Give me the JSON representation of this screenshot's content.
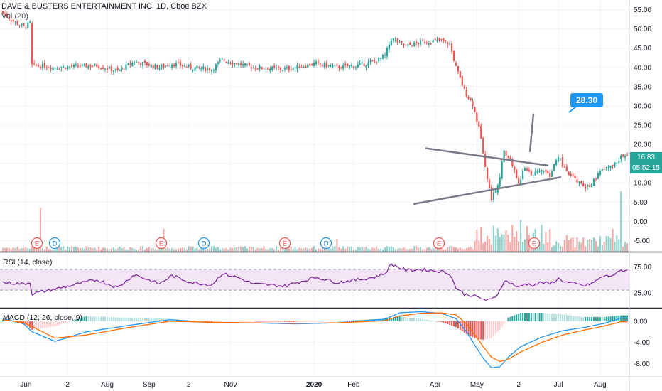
{
  "header": {
    "title": "DAVE & BUSTERS ENTERTAINMENT INC, 1D, Cboe BZX",
    "volume_label": "Vol (20)"
  },
  "rsi": {
    "label": "RSI (14, close)",
    "upper": 70,
    "lower": 30
  },
  "macd": {
    "label": "MACD (12, 26, close, 9)"
  },
  "price_tags": {
    "last": "16.83",
    "countdown": "05:52:15"
  },
  "callout": {
    "text": "28.30"
  },
  "colors": {
    "up": "#26a69a",
    "down": "#ef5350",
    "rsi_line": "#7b1fa2",
    "rsi_band": "#f3e5f5",
    "macd_line": "#2196f3",
    "signal_line": "#ff6d00",
    "drawing": "#787b86",
    "callout": "#2196f3"
  },
  "chart_data": [
    {
      "type": "candlestick",
      "title": "DAVE & BUSTERS ENTERTAINMENT INC, 1D, Cboe BZX",
      "x_ticks": [
        "Jun",
        "2",
        "Aug",
        "Sep",
        "2",
        "Nov",
        "2020",
        "Feb",
        "Apr",
        "May",
        "2",
        "Jul",
        "Aug"
      ],
      "y_ticks": [
        55.0,
        50.0,
        45.0,
        40.0,
        35.0,
        30.0,
        25.0,
        20.0,
        15.0,
        10.0,
        5.0,
        0.0,
        -5.0
      ],
      "ylim": [
        -7.5,
        57.5
      ],
      "last_price": 16.83,
      "events": [
        {
          "label": "E",
          "position": "early Jun"
        },
        {
          "label": "D",
          "position": "mid Jun"
        },
        {
          "label": "E",
          "position": "early Sep"
        },
        {
          "label": "D",
          "position": "early Oct"
        },
        {
          "label": "E",
          "position": "mid Dec"
        },
        {
          "label": "D",
          "position": "early Jan"
        },
        {
          "label": "E",
          "position": "early Apr"
        },
        {
          "label": "E",
          "position": "mid Jun"
        }
      ],
      "annotations": [
        {
          "type": "triangle",
          "upper": [
            19.0,
            14.5
          ],
          "lower": [
            4.5,
            11.5
          ]
        },
        {
          "type": "projection",
          "from": 18.0,
          "to": 28.0
        },
        {
          "type": "callout",
          "text": "28.30"
        }
      ],
      "key_points": [
        {
          "x": 0,
          "close": 54.0
        },
        {
          "x": 5,
          "close": 52.0
        },
        {
          "x": 10,
          "close": 50.5
        },
        {
          "x": 13,
          "close": 51.5
        },
        {
          "x": 14,
          "close": 40.5
        },
        {
          "x": 25,
          "close": 40.0
        },
        {
          "x": 45,
          "close": 40.5
        },
        {
          "x": 55,
          "close": 39.0
        },
        {
          "x": 63,
          "close": 41.5
        },
        {
          "x": 75,
          "close": 40.0
        },
        {
          "x": 81,
          "close": 41.0
        },
        {
          "x": 90,
          "close": 40.0
        },
        {
          "x": 100,
          "close": 39.5
        },
        {
          "x": 105,
          "close": 42.0
        },
        {
          "x": 112,
          "close": 41.0
        },
        {
          "x": 120,
          "close": 40.0
        },
        {
          "x": 135,
          "close": 39.5
        },
        {
          "x": 150,
          "close": 41.0
        },
        {
          "x": 160,
          "close": 40.0
        },
        {
          "x": 170,
          "close": 40.5
        },
        {
          "x": 178,
          "close": 41.5
        },
        {
          "x": 183,
          "close": 43.0
        },
        {
          "x": 186,
          "close": 47.5
        },
        {
          "x": 193,
          "close": 45.5
        },
        {
          "x": 200,
          "close": 46.5
        },
        {
          "x": 210,
          "close": 47.0
        },
        {
          "x": 214,
          "close": 46.0
        },
        {
          "x": 217,
          "close": 40.0
        },
        {
          "x": 221,
          "close": 34.0
        },
        {
          "x": 225,
          "close": 30.5
        },
        {
          "x": 229,
          "close": 22.0
        },
        {
          "x": 232,
          "close": 11.0
        },
        {
          "x": 234,
          "close": 6.0
        },
        {
          "x": 236,
          "close": 8.0
        },
        {
          "x": 238,
          "close": 12.0
        },
        {
          "x": 240,
          "close": 18.0
        },
        {
          "x": 243,
          "close": 16.0
        },
        {
          "x": 247,
          "close": 10.0
        },
        {
          "x": 250,
          "close": 14.0
        },
        {
          "x": 254,
          "close": 12.0
        },
        {
          "x": 258,
          "close": 13.5
        },
        {
          "x": 262,
          "close": 12.0
        },
        {
          "x": 266,
          "close": 17.0
        },
        {
          "x": 270,
          "close": 12.5
        },
        {
          "x": 274,
          "close": 11.0
        },
        {
          "x": 279,
          "close": 8.5
        },
        {
          "x": 283,
          "close": 10.5
        },
        {
          "x": 287,
          "close": 13.5
        },
        {
          "x": 291,
          "close": 14.0
        },
        {
          "x": 294,
          "close": 15.5
        },
        {
          "x": 296,
          "close": 16.83
        }
      ]
    },
    {
      "type": "line",
      "title": "RSI (14, close)",
      "y_ticks": [
        75.0,
        25.0
      ],
      "ylim": [
        0,
        100
      ],
      "bands": [
        30,
        70
      ],
      "key_points": [
        {
          "x": 0,
          "y": 45
        },
        {
          "x": 10,
          "y": 42
        },
        {
          "x": 13,
          "y": 45
        },
        {
          "x": 14,
          "y": 23
        },
        {
          "x": 25,
          "y": 32
        },
        {
          "x": 45,
          "y": 50
        },
        {
          "x": 55,
          "y": 35
        },
        {
          "x": 63,
          "y": 60
        },
        {
          "x": 75,
          "y": 42
        },
        {
          "x": 81,
          "y": 58
        },
        {
          "x": 90,
          "y": 45
        },
        {
          "x": 100,
          "y": 40
        },
        {
          "x": 105,
          "y": 62
        },
        {
          "x": 112,
          "y": 55
        },
        {
          "x": 120,
          "y": 42
        },
        {
          "x": 135,
          "y": 38
        },
        {
          "x": 150,
          "y": 55
        },
        {
          "x": 160,
          "y": 45
        },
        {
          "x": 170,
          "y": 50
        },
        {
          "x": 178,
          "y": 55
        },
        {
          "x": 183,
          "y": 62
        },
        {
          "x": 186,
          "y": 80
        },
        {
          "x": 193,
          "y": 68
        },
        {
          "x": 200,
          "y": 70
        },
        {
          "x": 210,
          "y": 66
        },
        {
          "x": 214,
          "y": 62
        },
        {
          "x": 217,
          "y": 35
        },
        {
          "x": 221,
          "y": 22
        },
        {
          "x": 225,
          "y": 20
        },
        {
          "x": 229,
          "y": 14
        },
        {
          "x": 232,
          "y": 10
        },
        {
          "x": 234,
          "y": 12
        },
        {
          "x": 236,
          "y": 18
        },
        {
          "x": 238,
          "y": 30
        },
        {
          "x": 240,
          "y": 48
        },
        {
          "x": 243,
          "y": 44
        },
        {
          "x": 247,
          "y": 35
        },
        {
          "x": 250,
          "y": 42
        },
        {
          "x": 254,
          "y": 40
        },
        {
          "x": 258,
          "y": 45
        },
        {
          "x": 262,
          "y": 42
        },
        {
          "x": 266,
          "y": 52
        },
        {
          "x": 270,
          "y": 45
        },
        {
          "x": 274,
          "y": 42
        },
        {
          "x": 279,
          "y": 38
        },
        {
          "x": 283,
          "y": 45
        },
        {
          "x": 287,
          "y": 56
        },
        {
          "x": 291,
          "y": 58
        },
        {
          "x": 294,
          "y": 62
        },
        {
          "x": 296,
          "y": 68
        }
      ]
    },
    {
      "type": "line",
      "title": "MACD (12, 26, close, 9)",
      "y_ticks": [
        0.0,
        -4.0,
        -8.0
      ],
      "ylim": [
        -10.5,
        2.0
      ],
      "series": [
        {
          "name": "MACD",
          "key_points": [
            {
              "x": 0,
              "y": 0.5
            },
            {
              "x": 10,
              "y": -0.5
            },
            {
              "x": 14,
              "y": -2.0
            },
            {
              "x": 25,
              "y": -3.8
            },
            {
              "x": 40,
              "y": -2.0
            },
            {
              "x": 60,
              "y": -0.8
            },
            {
              "x": 80,
              "y": 0.3
            },
            {
              "x": 100,
              "y": -0.3
            },
            {
              "x": 120,
              "y": -0.3
            },
            {
              "x": 140,
              "y": -0.5
            },
            {
              "x": 160,
              "y": -0.3
            },
            {
              "x": 183,
              "y": 0.4
            },
            {
              "x": 190,
              "y": 1.6
            },
            {
              "x": 200,
              "y": 1.8
            },
            {
              "x": 210,
              "y": 1.5
            },
            {
              "x": 217,
              "y": 0.5
            },
            {
              "x": 222,
              "y": -2.0
            },
            {
              "x": 226,
              "y": -4.5
            },
            {
              "x": 230,
              "y": -7.0
            },
            {
              "x": 234,
              "y": -8.8
            },
            {
              "x": 238,
              "y": -8.6
            },
            {
              "x": 242,
              "y": -6.8
            },
            {
              "x": 248,
              "y": -4.8
            },
            {
              "x": 258,
              "y": -3.0
            },
            {
              "x": 268,
              "y": -1.8
            },
            {
              "x": 278,
              "y": -1.2
            },
            {
              "x": 288,
              "y": -0.4
            },
            {
              "x": 296,
              "y": 0.6
            }
          ]
        },
        {
          "name": "Signal",
          "key_points": [
            {
              "x": 0,
              "y": 0.3
            },
            {
              "x": 10,
              "y": -0.3
            },
            {
              "x": 14,
              "y": -1.0
            },
            {
              "x": 25,
              "y": -3.2
            },
            {
              "x": 40,
              "y": -2.6
            },
            {
              "x": 60,
              "y": -1.2
            },
            {
              "x": 80,
              "y": 0.0
            },
            {
              "x": 100,
              "y": -0.2
            },
            {
              "x": 120,
              "y": -0.3
            },
            {
              "x": 140,
              "y": -0.4
            },
            {
              "x": 160,
              "y": -0.3
            },
            {
              "x": 183,
              "y": 0.1
            },
            {
              "x": 190,
              "y": 1.0
            },
            {
              "x": 200,
              "y": 1.5
            },
            {
              "x": 210,
              "y": 1.6
            },
            {
              "x": 217,
              "y": 1.2
            },
            {
              "x": 222,
              "y": -0.5
            },
            {
              "x": 226,
              "y": -2.5
            },
            {
              "x": 230,
              "y": -4.8
            },
            {
              "x": 234,
              "y": -6.8
            },
            {
              "x": 238,
              "y": -7.6
            },
            {
              "x": 242,
              "y": -7.2
            },
            {
              "x": 248,
              "y": -5.8
            },
            {
              "x": 258,
              "y": -4.0
            },
            {
              "x": 268,
              "y": -2.6
            },
            {
              "x": 278,
              "y": -1.7
            },
            {
              "x": 288,
              "y": -0.9
            },
            {
              "x": 296,
              "y": -0.1
            }
          ]
        }
      ]
    }
  ]
}
